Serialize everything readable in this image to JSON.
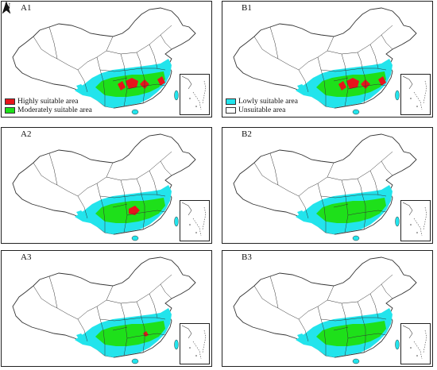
{
  "north_label": "N",
  "colors": {
    "high": "#e8141b",
    "moderate": "#1ee01a",
    "low": "#22e4ec",
    "unsuitable": "#ffffff",
    "boundary": "#333333"
  },
  "panels": [
    {
      "label": "A1",
      "high_level": "high"
    },
    {
      "label": "B1",
      "high_level": "high"
    },
    {
      "label": "A2",
      "high_level": "medium"
    },
    {
      "label": "B2",
      "high_level": "none"
    },
    {
      "label": "A3",
      "high_level": "low"
    },
    {
      "label": "B3",
      "high_level": "none"
    }
  ],
  "legend": {
    "left": [
      {
        "label": "Highly suitable area",
        "color_key": "high"
      },
      {
        "label": "Moderately suitable area",
        "color_key": "moderate"
      }
    ],
    "right": [
      {
        "label": "Lowly suitable area",
        "color_key": "low"
      },
      {
        "label": "Unsuitable area",
        "color_key": "unsuitable"
      }
    ]
  }
}
